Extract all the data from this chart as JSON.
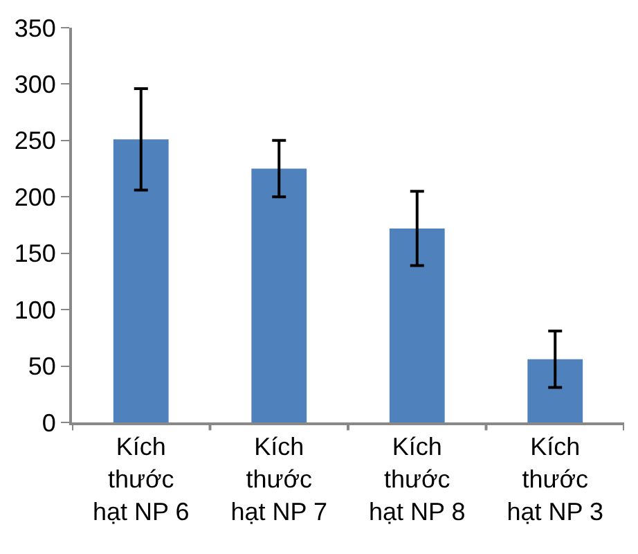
{
  "chart_data": {
    "type": "bar",
    "categories": [
      "Kích thước hạt NP 6",
      "Kích thước hạt NP 7",
      "Kích thước hạt NP 8",
      "Kích thước hạt NP 3"
    ],
    "values": [
      251,
      225,
      172,
      56
    ],
    "errors": [
      45,
      25,
      33,
      25
    ],
    "color": "#4f81bd",
    "ylim": [
      0,
      350
    ],
    "yticks": [
      0,
      50,
      100,
      150,
      200,
      250,
      300,
      350
    ]
  }
}
